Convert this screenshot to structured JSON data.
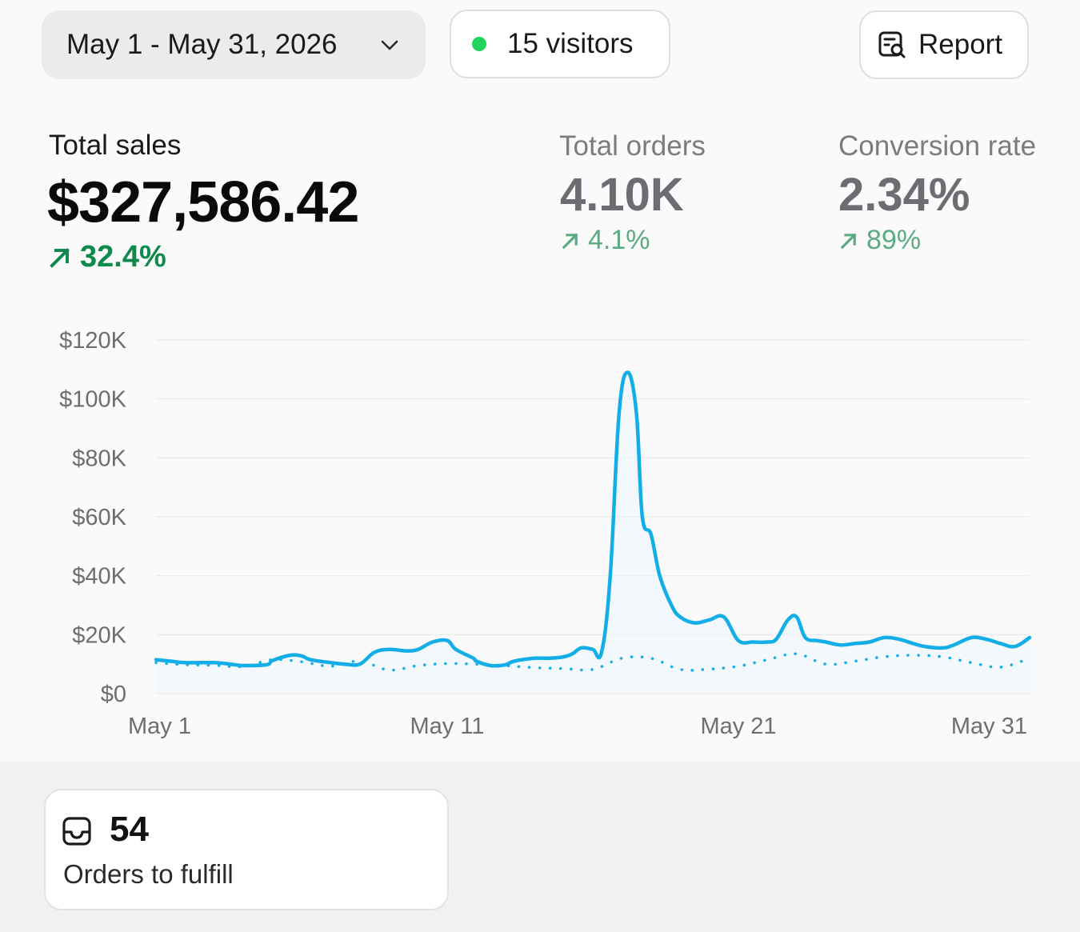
{
  "toolbar": {
    "date_range": "May 1 - May 31, 2026",
    "visitors_label": "15 visitors",
    "live_dot_color": "#22d45d",
    "report_label": "Report",
    "report_icon": "report-search-icon",
    "date_icon": "chevron-down-icon"
  },
  "metrics": {
    "total_sales": {
      "label": "Total sales",
      "value": "$327,586.42",
      "change": "32.4%",
      "trend": "up"
    },
    "total_orders": {
      "label": "Total orders",
      "value": "4.10K",
      "change": "4.1%",
      "trend": "up"
    },
    "conversion_rate": {
      "label": "Conversion rate",
      "value": "2.34%",
      "change": "89%",
      "trend": "up"
    }
  },
  "chart_data": {
    "type": "line",
    "title": "",
    "xlabel": "",
    "ylabel": "",
    "x_tick_labels": [
      "May 1",
      "May 11",
      "May 21",
      "May 31"
    ],
    "y_tick_labels": [
      "$0",
      "$20K",
      "$40K",
      "$60K",
      "$80K",
      "$100K",
      "$120K"
    ],
    "ylim": [
      0,
      120000
    ],
    "xlim": [
      1,
      31
    ],
    "grid": true,
    "legend": "none",
    "series": [
      {
        "style": "solid",
        "color": "#13aee8",
        "x": [
          1,
          1.5,
          2,
          3,
          3.7,
          4,
          4.8,
          5,
          5.6,
          6,
          6.3,
          7,
          7.5,
          8,
          8.5,
          9,
          9.6,
          10,
          10.5,
          11,
          11.3,
          11.9,
          12,
          12.5,
          13,
          13.3,
          14,
          14.5,
          15,
          15.3,
          15.6,
          16,
          16.3,
          16.6,
          16.9,
          17.2,
          17.5,
          17.7,
          18,
          18.3,
          18.7,
          19,
          19.5,
          20,
          20.5,
          21,
          21.5,
          22,
          22.3,
          22.7,
          23,
          23.3,
          23.7,
          24,
          24.5,
          25,
          25.5,
          26,
          26.5,
          27,
          27.4,
          28,
          28.4,
          29,
          29.5,
          30,
          30.5,
          31
        ],
        "values": [
          11500,
          11000,
          10500,
          10500,
          9800,
          9500,
          9800,
          11200,
          13000,
          12800,
          11500,
          10500,
          10000,
          10000,
          14000,
          15000,
          14500,
          15000,
          17500,
          18000,
          15000,
          12000,
          11000,
          9500,
          9800,
          11000,
          12000,
          12000,
          12500,
          13500,
          15500,
          15000,
          14000,
          40000,
          95000,
          109000,
          95000,
          60000,
          54000,
          40000,
          30000,
          26000,
          24000,
          25000,
          26000,
          18000,
          17500,
          17500,
          18500,
          25000,
          26000,
          19000,
          18000,
          17500,
          16500,
          17000,
          17500,
          19000,
          18500,
          17000,
          16000,
          15500,
          16500,
          19000,
          18500,
          17000,
          16000,
          19000
        ]
      },
      {
        "style": "dotted",
        "color": "#13aee8",
        "x": [
          1,
          2,
          3,
          4,
          5,
          6,
          7,
          8,
          9,
          10,
          11,
          12,
          13,
          14,
          15,
          16,
          17,
          18,
          19,
          20,
          21,
          22,
          23,
          24,
          25,
          26,
          27,
          28,
          29,
          30,
          31
        ],
        "values": [
          10500,
          9800,
          9600,
          9200,
          11500,
          10800,
          9300,
          11000,
          8000,
          9500,
          10200,
          10000,
          9500,
          8800,
          8500,
          8200,
          12000,
          12000,
          8200,
          8300,
          9300,
          11500,
          13500,
          10000,
          11000,
          12500,
          13000,
          12500,
          10500,
          9000,
          12000
        ]
      }
    ]
  },
  "fulfill": {
    "count": "54",
    "label": "Orders to fulfill",
    "icon": "inbox-icon"
  }
}
